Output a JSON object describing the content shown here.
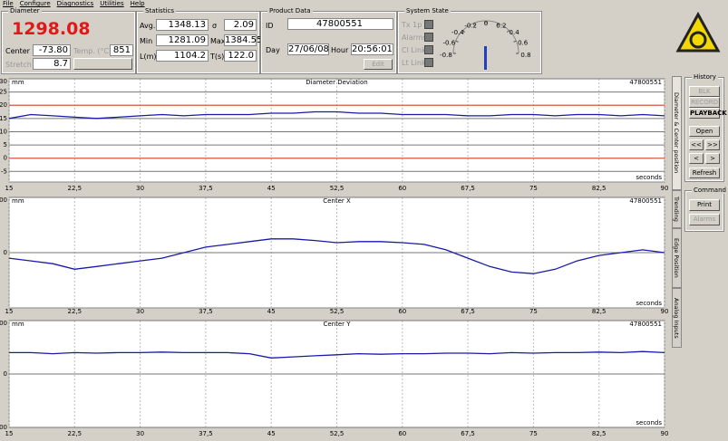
{
  "menu": [
    "File",
    "Configure",
    "Diagnostics",
    "Utilities",
    "Help"
  ],
  "diameter_panel": {
    "title": "Diameter",
    "value": "1298.08",
    "center_label": "Center",
    "center": "-73.80",
    "temp_label": "Temp. (°C)",
    "temp": "851",
    "stretch_label": "Stretch",
    "stretch": "8.7"
  },
  "statistics": {
    "title": "Statistics",
    "avg_label": "Avg.",
    "avg": "1348.13",
    "sigma_label": "σ",
    "sigma": "2.09",
    "min_label": "Min",
    "min": "1281.09",
    "max_label": "Max",
    "max": "1384.55",
    "l_label": "L(m)",
    "l": "1104.2",
    "t_label": "T(s)",
    "t": "122.0"
  },
  "product_data": {
    "title": "Product Data",
    "id_label": "ID",
    "id": "47800551",
    "day_label": "Day",
    "day": "27/06/08",
    "hour_label": "Hour",
    "hour": "20:56:01",
    "edit": "Edit"
  },
  "system_state": {
    "title": "System State",
    "indicators": [
      "Tx 1p",
      "Alarms",
      "Cl Link",
      "Lt Link"
    ],
    "gauge_labels": [
      "-0.8",
      "-0.6",
      "-0.4",
      "-0.2",
      "0",
      "0.2",
      "0.4",
      "0.6",
      "0.8"
    ]
  },
  "tabs": [
    "Diameter & Center position",
    "Trending",
    "Edge Position",
    "Analog Inputs"
  ],
  "history": {
    "title": "History",
    "buttons": [
      "BLK",
      "RECORD",
      "PLAYBACK",
      "Open",
      "<<",
      ">>",
      "<",
      ">",
      "Refresh"
    ]
  },
  "command": {
    "title": "Command",
    "buttons": [
      "Print",
      "Alarms"
    ]
  },
  "chart_data": [
    {
      "type": "line",
      "title": "Diameter Deviation",
      "unit": "mm",
      "id": "47800551",
      "x_label": "seconds",
      "x": [
        15,
        17.5,
        20,
        22.5,
        25,
        27.5,
        30,
        32.5,
        35,
        37.5,
        40,
        42.5,
        45,
        47.5,
        50,
        52.5,
        55,
        57.5,
        60,
        62.5,
        65,
        67.5,
        70,
        72.5,
        75,
        77.5,
        80,
        82.5,
        85,
        87.5,
        90
      ],
      "series": [
        {
          "color": "#1a1aa8",
          "values": [
            15,
            16.5,
            16,
            15.5,
            15,
            15.5,
            16,
            16.5,
            16,
            16.5,
            16.5,
            16.5,
            17,
            17,
            17.5,
            17.5,
            17,
            17,
            16.5,
            16.5,
            16.5,
            16,
            16,
            16.5,
            16.5,
            16,
            16.5,
            16.5,
            16,
            16.5,
            16
          ]
        }
      ],
      "ref_lines": [
        20,
        0
      ],
      "ref_color": "#e06050",
      "xlim": [
        15,
        90
      ],
      "ylim": [
        -9,
        30
      ],
      "xticks": [
        15,
        {
          "value": 22.5,
          "label": "22,5"
        },
        30,
        {
          "value": 37.5,
          "label": "37,5"
        },
        45,
        {
          "value": 52.5,
          "label": "52,5"
        },
        60,
        {
          "value": 67.5,
          "label": "67,5"
        },
        75,
        {
          "value": 82.5,
          "label": "82,5"
        },
        90
      ],
      "yticks": [
        30,
        25,
        20,
        15,
        10,
        5,
        0,
        -5
      ]
    },
    {
      "type": "line",
      "title": "Center X",
      "unit": "mm",
      "id": "47800551",
      "x_label": "seconds",
      "x": [
        15,
        17.5,
        20,
        22.5,
        25,
        27.5,
        30,
        32.5,
        35,
        37.5,
        40,
        42.5,
        45,
        47.5,
        50,
        52.5,
        55,
        57.5,
        60,
        62.5,
        65,
        67.5,
        70,
        72.5,
        75,
        77.5,
        80,
        82.5,
        85,
        87.5,
        90
      ],
      "series": [
        {
          "color": "#1a1aa8",
          "values": [
            -10,
            -15,
            -20,
            -30,
            -25,
            -20,
            -15,
            -10,
            0,
            10,
            15,
            20,
            25,
            25,
            22,
            18,
            20,
            20,
            18,
            15,
            5,
            -10,
            -25,
            -35,
            -38,
            -30,
            -15,
            -5,
            0,
            5,
            0
          ]
        }
      ],
      "xlim": [
        15,
        90
      ],
      "ylim": [
        -100,
        100
      ],
      "xticks": [
        15,
        {
          "value": 22.5,
          "label": "22,5"
        },
        30,
        {
          "value": 37.5,
          "label": "37,5"
        },
        45,
        {
          "value": 52.5,
          "label": "52,5"
        },
        60,
        {
          "value": 67.5,
          "label": "67,5"
        },
        75,
        {
          "value": 82.5,
          "label": "82,5"
        },
        90
      ],
      "yticks": [
        100,
        0
      ]
    },
    {
      "type": "line",
      "title": "Center Y",
      "unit": "mm",
      "id": "47800551",
      "x_label": "seconds",
      "x": [
        15,
        17.5,
        20,
        22.5,
        25,
        27.5,
        30,
        32.5,
        35,
        37.5,
        40,
        42.5,
        45,
        47.5,
        50,
        52.5,
        55,
        57.5,
        60,
        62.5,
        65,
        67.5,
        70,
        72.5,
        75,
        77.5,
        80,
        82.5,
        85,
        87.5,
        90
      ],
      "series": [
        {
          "color": "#1a1aa8",
          "values": [
            40,
            40,
            38,
            40,
            39,
            40,
            40,
            41,
            40,
            40,
            40,
            38,
            30,
            32,
            34,
            36,
            38,
            37,
            38,
            38,
            39,
            39,
            38,
            40,
            39,
            40,
            40,
            41,
            40,
            42,
            40
          ]
        }
      ],
      "xlim": [
        15,
        90
      ],
      "ylim": [
        -100,
        100
      ],
      "xticks": [
        15,
        {
          "value": 22.5,
          "label": "22,5"
        },
        30,
        {
          "value": 37.5,
          "label": "37,5"
        },
        45,
        {
          "value": 52.5,
          "label": "52,5"
        },
        60,
        {
          "value": 67.5,
          "label": "67,5"
        },
        75,
        {
          "value": 82.5,
          "label": "82,5"
        },
        90
      ],
      "yticks": [
        100,
        0,
        -100
      ]
    }
  ]
}
